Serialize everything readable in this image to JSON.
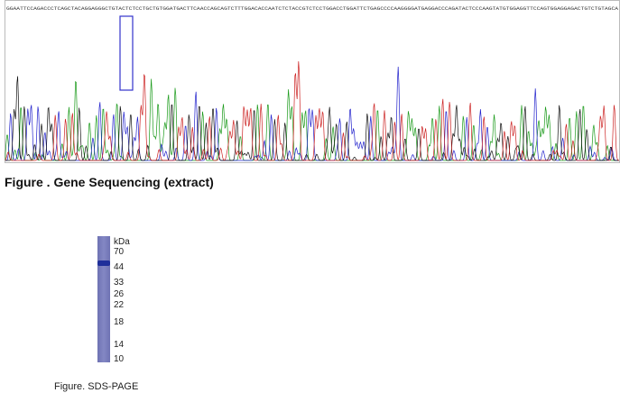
{
  "chromatogram": {
    "sequence": "GGAATTCCAGACCCTCAGCTACAGGAGGGCTGTACTCTCCTGCTGTGGATGACTTCAACCAGCAGTCTTTGGACACCAATCTCTACCGTCTCCTGGACCTGGATTCTGAGCCCCAAGGGGATGAGGACCCAGATACTCCCAAGTATGTGGAGGTTCCAGTGGAGGAGACTGTCTGTAGCA",
    "caption": "Figure . Gene Sequencing (extract)"
  },
  "gel": {
    "unit": "kDa",
    "markers": [
      "70",
      "44",
      "33",
      "26",
      "22",
      "18",
      "14",
      "10"
    ],
    "caption": "Figure. SDS-PAGE"
  }
}
